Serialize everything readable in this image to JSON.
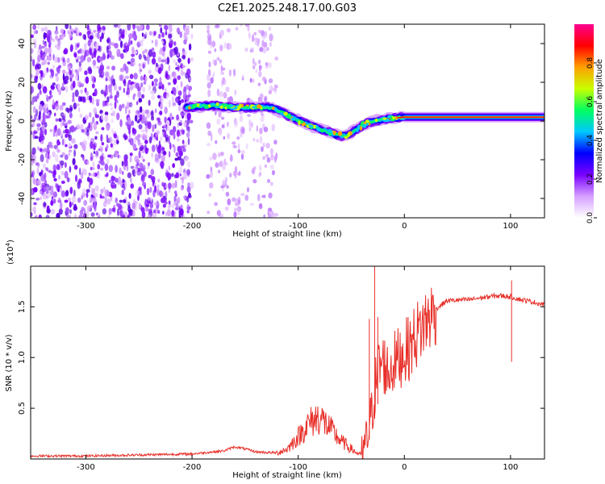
{
  "chart_data": [
    {
      "type": "heatmap",
      "title": "C2E1.2025.248.17.00.G03",
      "xlabel": "Height of straight line (km)",
      "ylabel": "Frequency (Hz)",
      "xlim": [
        -352,
        132
      ],
      "ylim": [
        -50,
        50
      ],
      "xticks": [
        -300,
        -200,
        -100,
        0,
        100
      ],
      "xtick_labels": [
        "-300",
        "-200",
        "-100",
        "0",
        "100"
      ],
      "yticks": [
        -40,
        -20,
        0,
        20,
        40
      ],
      "ytick_labels": [
        "-40",
        "-20",
        "0",
        "20",
        "40"
      ],
      "colorbar": {
        "label": "Normalized spectral amplitude",
        "range": [
          0,
          1
        ],
        "ticks": [
          0.0,
          0.2,
          0.4,
          0.6,
          0.8
        ],
        "tick_labels": [
          "0.0",
          "0.2",
          "0.4",
          "0.6",
          "0.8"
        ],
        "colors": [
          "#ffffff",
          "#d6a0ff",
          "#7a00ff",
          "#0000ff",
          "#00c8ff",
          "#00ff60",
          "#c8ff00",
          "#ffa000",
          "#ff0000",
          "#ff0090"
        ]
      },
      "noise_regions": [
        {
          "x": [
            -352,
            -200
          ],
          "density": "high"
        },
        {
          "x": [
            -185,
            -120
          ],
          "density": "low"
        }
      ],
      "ridge": {
        "x": [
          -205,
          -180,
          -160,
          -140,
          -125,
          -110,
          -95,
          -80,
          -65,
          -55,
          -45,
          -35,
          -20,
          0,
          30,
          60,
          90,
          110,
          132
        ],
        "freq": [
          7,
          8,
          7,
          7,
          7,
          3,
          -1,
          -4,
          -7,
          -8,
          -4,
          -1,
          1,
          2,
          2,
          2,
          2,
          2,
          2
        ]
      }
    },
    {
      "type": "line",
      "title": "",
      "xlabel": "Height of straight line (km)",
      "ylabel": "SNR (10 * v/v)",
      "y_multiplier": "(x10",
      "y_multiplier_exp": "4",
      "y_multiplier_close": ")",
      "xlim": [
        -352,
        132
      ],
      "ylim": [
        0,
        1.9
      ],
      "xticks": [
        -300,
        -200,
        -100,
        0,
        100
      ],
      "xtick_labels": [
        "-300",
        "-200",
        "-100",
        "0",
        "100"
      ],
      "yticks": [
        0.5,
        1.0,
        1.5
      ],
      "ytick_labels": [
        "0.5",
        "1.0",
        "1.5"
      ],
      "series": [
        {
          "name": "SNR",
          "color": "#e8302a",
          "x": [
            -352,
            -300,
            -250,
            -200,
            -170,
            -160,
            -150,
            -140,
            -120,
            -110,
            -100,
            -90,
            -80,
            -70,
            -60,
            -50,
            -45,
            -40,
            -35,
            -30,
            -25,
            -20,
            -15,
            -10,
            -5,
            0,
            5,
            10,
            20,
            30,
            40,
            60,
            80,
            90,
            100,
            110,
            120,
            132
          ],
          "y": [
            0.03,
            0.03,
            0.04,
            0.05,
            0.08,
            0.12,
            0.1,
            0.07,
            0.06,
            0.1,
            0.22,
            0.35,
            0.42,
            0.3,
            0.18,
            0.1,
            0.06,
            0.04,
            0.2,
            0.5,
            0.9,
            0.95,
            0.85,
            0.95,
            1.0,
            1.05,
            1.1,
            1.2,
            1.35,
            1.48,
            1.56,
            1.57,
            1.6,
            1.61,
            1.6,
            1.57,
            1.55,
            1.52
          ]
        }
      ],
      "spikes": [
        {
          "x": -28,
          "y": 1.9
        },
        {
          "x": -25,
          "y": 1.4
        },
        {
          "x": -33,
          "y": 1.38
        },
        {
          "x": 101,
          "y": 1.76
        }
      ]
    }
  ]
}
